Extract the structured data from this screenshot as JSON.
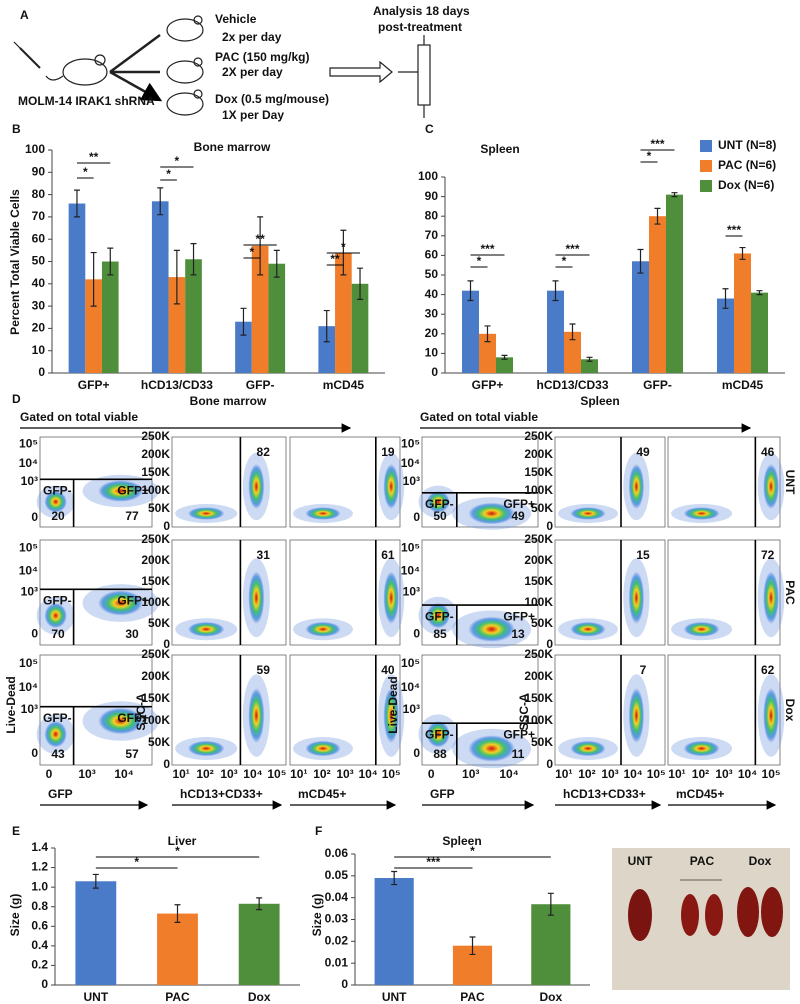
{
  "chart_data": [
    {
      "type": "bar",
      "label": "B",
      "title": "Bone marrow",
      "y_label": "Percent  Total Viable Cells",
      "categories": [
        "GFP+",
        "hCD13/CD33",
        "GFP-",
        "mCD45"
      ],
      "series": [
        {
          "color": "#4a7bc8",
          "values": [
            76,
            77,
            23,
            21
          ],
          "errors": [
            6,
            6,
            6,
            7
          ]
        },
        {
          "color": "#f07d2a",
          "values": [
            42,
            43,
            57,
            54
          ],
          "errors": [
            12,
            12,
            13,
            10
          ]
        },
        {
          "color": "#4f8f3c",
          "values": [
            50,
            51,
            49,
            40
          ],
          "errors": [
            6,
            7,
            6,
            7
          ]
        }
      ],
      "ylim": [
        0,
        100
      ],
      "yticks": [
        0,
        10,
        20,
        30,
        40,
        50,
        60,
        70,
        80,
        90,
        100
      ],
      "significance": [
        "*",
        "**",
        "*",
        "*",
        "*",
        "**",
        "**",
        "*"
      ]
    },
    {
      "type": "bar",
      "label": "C",
      "title": "Spleen",
      "categories": [
        "GFP+",
        "hCD13/CD33",
        "GFP-",
        "mCD45"
      ],
      "series": [
        {
          "name": "UNT (N=8)",
          "color": "#4a7bc8",
          "values": [
            42,
            42,
            57,
            38
          ],
          "errors": [
            5,
            5,
            6,
            5
          ]
        },
        {
          "name": "PAC (N=6)",
          "color": "#f07d2a",
          "values": [
            20,
            21,
            80,
            61
          ],
          "errors": [
            4,
            4,
            4,
            3
          ]
        },
        {
          "name": "Dox (N=6)",
          "color": "#4f8f3c",
          "values": [
            8,
            7,
            91,
            41
          ],
          "errors": [
            1,
            1,
            1,
            1
          ]
        }
      ],
      "ylim": [
        0,
        100
      ],
      "yticks": [
        0,
        10,
        20,
        30,
        40,
        50,
        60,
        70,
        80,
        90,
        100
      ],
      "significance": [
        "*",
        "***",
        "*",
        "***",
        "*",
        "***",
        "***"
      ]
    },
    {
      "type": "bar",
      "label": "E",
      "title": "Liver",
      "y_label": "Size (g)",
      "categories": [
        "UNT",
        "PAC",
        "Dox"
      ],
      "values": [
        1.06,
        0.73,
        0.83
      ],
      "errors": [
        0.07,
        0.09,
        0.06
      ],
      "colors": [
        "#4a7bc8",
        "#f07d2a",
        "#4f8f3c"
      ],
      "ylim": [
        0,
        1.4
      ],
      "yticks": [
        0,
        0.2,
        0.4,
        0.6,
        0.8,
        {
          "value": 1,
          "label": "1.0"
        },
        1.2,
        1.4
      ],
      "significance": [
        "*",
        "*"
      ]
    },
    {
      "type": "bar",
      "label": "F",
      "title": "Spleen",
      "y_label": "Size (g)",
      "categories": [
        "UNT",
        "PAC",
        "Dox"
      ],
      "values": [
        0.049,
        0.018,
        0.037
      ],
      "errors": [
        0.003,
        0.004,
        0.005
      ],
      "colors": [
        "#4a7bc8",
        "#f07d2a",
        "#4f8f3c"
      ],
      "ylim": [
        0,
        0.06
      ],
      "yticks": [
        0,
        0.01,
        0.02,
        0.03,
        0.04,
        0.05,
        0.06
      ],
      "significance": [
        "*",
        "***"
      ]
    }
  ],
  "schematic": {
    "label": "A",
    "cell_line": "MOLM-14 IRAK1 shRNA",
    "arms": [
      [
        "Vehicle",
        "2x per day"
      ],
      [
        "PAC (150 mg/kg)",
        "2X per day"
      ],
      [
        "Dox (0.5 mg/mouse)",
        "1X per Day"
      ]
    ],
    "analysis": [
      "Analysis 18 days",
      "post-treatment"
    ]
  },
  "flow": {
    "label": "D",
    "row_labels": [
      "UNT",
      "PAC",
      "Dox"
    ],
    "gate_labels": [
      "GFP-",
      "GFP+"
    ],
    "sections": [
      {
        "title": "Bone marrow",
        "gating": "Gated on total viable",
        "rows": [
          [
            20,
            77,
            82,
            19
          ],
          [
            70,
            30,
            31,
            61
          ],
          [
            43,
            57,
            59,
            40
          ]
        ]
      },
      {
        "title": "Spleen",
        "gating": "Gated on total viable",
        "rows": [
          [
            50,
            49,
            49,
            46
          ],
          [
            85,
            13,
            15,
            72
          ],
          [
            88,
            11,
            7,
            62
          ]
        ]
      }
    ],
    "axis_labels": [
      "GFP",
      "hCD13+CD33+",
      "mCD45+"
    ],
    "y_labels": [
      "Live-Dead",
      "SSC-A"
    ],
    "ld_ticks": [
      "10⁵",
      "10⁴",
      "10³",
      "0"
    ],
    "gfp_ticks": [
      "0",
      "10³",
      "10⁴"
    ],
    "ssc_ticks": [
      "250K",
      "200K",
      "150K",
      "100K",
      "50K",
      "0"
    ],
    "log_ticks": [
      "10¹",
      "10²",
      "10³",
      "10⁴",
      "10⁵"
    ]
  },
  "photo": {
    "labels": [
      "UNT",
      "PAC",
      "Dox"
    ]
  }
}
